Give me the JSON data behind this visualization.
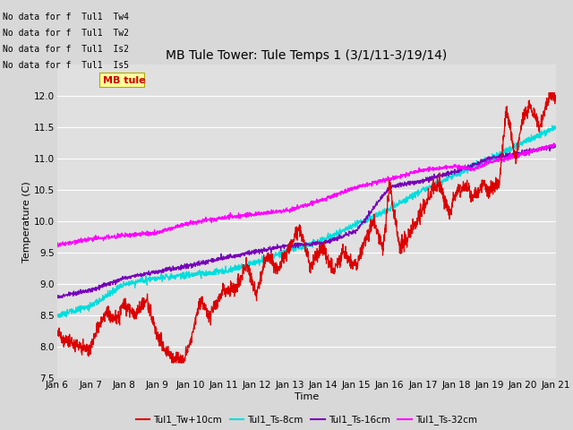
{
  "title": "MB Tule Tower: Tule Temps 1 (3/1/11-3/19/14)",
  "xlabel": "Time",
  "ylabel": "Temperature (C)",
  "xlim": [
    0,
    15
  ],
  "ylim": [
    7.5,
    12.5
  ],
  "yticks": [
    7.5,
    8.0,
    8.5,
    9.0,
    9.5,
    10.0,
    10.5,
    11.0,
    11.5,
    12.0
  ],
  "xtick_labels": [
    "Jan 6",
    "Jan 7",
    "Jan 8",
    "Jan 9",
    "Jan 10",
    "Jan 11",
    "Jan 12",
    "Jan 13",
    "Jan 14",
    "Jan 15",
    "Jan 16",
    "Jan 17",
    "Jan 18",
    "Jan 19",
    "Jan 20",
    "Jan 21"
  ],
  "colors": {
    "tw": "#dd0000",
    "ts8": "#00dddd",
    "ts16": "#7700bb",
    "ts32": "#ff00ff"
  },
  "legend_labels": [
    "Tul1_Tw+10cm",
    "Tul1_Ts-8cm",
    "Tul1_Ts-16cm",
    "Tul1_Ts-32cm"
  ],
  "no_data_texts": [
    "No data for f  Tul1  Tw4",
    "No data for f  Tul1  Tw2",
    "No data for f  Tul1  Is2",
    "No data for f  Tul1  Is5"
  ],
  "fig_bg": "#d8d8d8",
  "plot_bg": "#e0e0e0",
  "grid_color": "#ffffff",
  "title_fontsize": 10,
  "axis_fontsize": 8,
  "tick_fontsize": 7.5
}
